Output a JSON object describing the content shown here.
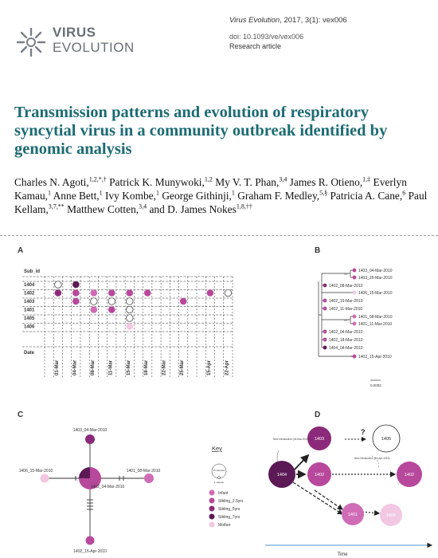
{
  "header": {
    "logo_line1": "VIRUS",
    "logo_line2": "EVOLUTION",
    "journal": "Virus Evolution",
    "citation": ", 2017, 3(1): vex006",
    "doi": "doi: 10.1093/ve/vex006",
    "article_type": "Research article"
  },
  "title": "Transmission patterns and evolution of respiratory syncytial virus in a community outbreak identified by genomic analysis",
  "authors": [
    {
      "name": "Charles N. Agoti,",
      "sup": "1,2,*,†"
    },
    {
      "name": " Patrick K. Munywoki,",
      "sup": "1,2"
    },
    {
      "name": " My V. T. Phan,",
      "sup": "3,4"
    },
    {
      "name": " James R. Otieno,",
      "sup": "1,‡"
    },
    {
      "name": " Everlyn Kamau,",
      "sup": "1"
    },
    {
      "name": " Anne Bett,",
      "sup": "1"
    },
    {
      "name": " Ivy Kombe,",
      "sup": "1"
    },
    {
      "name": " George Githinji,",
      "sup": "1"
    },
    {
      "name": " Graham F. Medley,",
      "sup": "5,§"
    },
    {
      "name": " Patricia A. Cane,",
      "sup": "6"
    },
    {
      "name": " Paul Kellam,",
      "sup": "3,7,**"
    },
    {
      "name": " Matthew Cotten,",
      "sup": "3,4"
    },
    {
      "name": " and D. James Nokes",
      "sup": "1,8,††"
    }
  ],
  "figure": {
    "panels": [
      "A",
      "B",
      "C",
      "D"
    ],
    "colors": {
      "Infant": "#d06bb6",
      "Sibling_2.5yrs": "#b8489c",
      "Sibling_5yrs": "#8b2a7a",
      "Sibling_7yrs": "#5b1a55",
      "Mother": "#f2c7e2"
    },
    "A": {
      "sub_id_label": "Sub_id",
      "date_label": "Date",
      "rows": [
        "1404",
        "1402",
        "1403",
        "1401",
        "1405",
        "1406"
      ],
      "dates": [
        "01-Mar",
        "04-Mar",
        "08-Mar",
        "11-Mar",
        "15-Mar",
        "18-Mar",
        "22-Mar",
        "25-Mar",
        "15-Apr",
        "22-Apr"
      ],
      "scale_label": ""
    },
    "B": {
      "tips": [
        "1403_04-Mar-2010",
        "1403_26-Mar-2010",
        "1402_08-Mar-2010",
        "1406_15-Mar-2010",
        "1402_15-Mar-2010",
        "1402_11-Mar-2010",
        "1401_08-Mar-2010",
        "1401_11-Mar-2010",
        "1402_04-Mar-2010",
        "1402_18-Mar-2010",
        "1404_04-Mar-2010",
        "1402_15-Apr-2010"
      ],
      "scale": "0.0002"
    },
    "C": {
      "nodes": [
        "1403_04-Mar-2010",
        "1406_15-Mar-2010",
        "1401_08-Mar-2010",
        "1402_04-Mar-2010",
        "1402_15-Apr-2010"
      ],
      "key_title": "Key",
      "key_size_10": "10 samples",
      "key_size_1": "1 sample",
      "key_items": [
        "Infant",
        "Sibling_2.5yrs",
        "Sibling_5yrs",
        "Sibling_7yrs",
        "Mother"
      ]
    },
    "D": {
      "nodes": [
        "1404",
        "1403",
        "1402",
        "1402",
        "1401",
        "1406",
        "1405"
      ],
      "q": "?",
      "new_intro_1": "New introduction (04-Mar-2010)",
      "new_intro_2": "New introduction (15-Apr-2010)",
      "time_label": "Time"
    }
  }
}
